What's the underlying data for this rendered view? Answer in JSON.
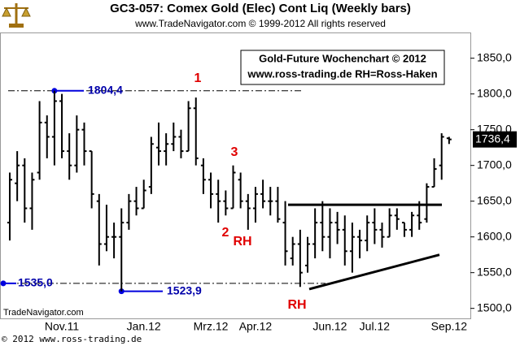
{
  "chart_data": {
    "type": "ohlc",
    "title": "GC3-057:  Comex Gold (Elec) Cont Liq  (Weekly bars)",
    "subtitle": "www.TradeNavigator.com © 1999-2012 All rights reserved",
    "info_box": [
      "Gold-Future Wochenchart © 2012",
      "www.ross-trading.de  RH=Ross-Haken"
    ],
    "watermark": "TradeNavigator.com",
    "footer": "© 2012  www.ross-trading.de",
    "categories": [
      null,
      null,
      null,
      null,
      null,
      null,
      null,
      "Nov.11",
      null,
      null,
      null,
      null,
      null,
      null,
      null,
      null,
      null,
      null,
      "Jan.12",
      null,
      null,
      null,
      null,
      null,
      null,
      null,
      null,
      "Mrz.12",
      null,
      null,
      null,
      null,
      null,
      "Apr.12",
      null,
      null,
      null,
      null,
      null,
      null,
      null,
      null,
      null,
      "Jun.12",
      null,
      null,
      null,
      null,
      null,
      "Jul.12",
      null,
      null,
      null,
      null,
      null,
      null,
      null,
      null,
      null,
      "Sep.12"
    ],
    "color": "#000000",
    "series": {
      "open": [
        1620,
        1675,
        1700,
        1640,
        1690,
        1760,
        1740,
        1790,
        1720,
        1700,
        1750,
        1720,
        1650,
        1590,
        1600,
        1600,
        1620,
        1650,
        1640,
        1670,
        1725,
        1720,
        1730,
        1740,
        1720,
        1780,
        1700,
        1680,
        1660,
        1650,
        1640,
        1680,
        1650,
        1640,
        1660,
        1650,
        1650,
        1620,
        1570,
        1590,
        1560,
        1590,
        1620,
        1600,
        1620,
        1610,
        1580,
        1600,
        1595,
        1620,
        1610,
        1600,
        1630,
        1620,
        1610,
        1630,
        1625,
        1670,
        1700,
        1738
      ],
      "high": [
        1690,
        1720,
        1710,
        1690,
        1790,
        1770,
        1804.4,
        1800,
        1745,
        1770,
        1760,
        1720,
        1660,
        1645,
        1620,
        1640,
        1660,
        1670,
        1680,
        1740,
        1760,
        1745,
        1760,
        1750,
        1790,
        1795,
        1710,
        1690,
        1680,
        1665,
        1700,
        1690,
        1660,
        1670,
        1680,
        1670,
        1670,
        1650,
        1600,
        1610,
        1600,
        1640,
        1650,
        1640,
        1635,
        1630,
        1620,
        1610,
        1630,
        1640,
        1620,
        1640,
        1640,
        1620,
        1635,
        1650,
        1675,
        1710,
        1745,
        1740
      ],
      "low": [
        1595,
        1650,
        1620,
        1610,
        1680,
        1710,
        1700,
        1710,
        1680,
        1690,
        1700,
        1640,
        1560,
        1580,
        1570,
        1523.9,
        1610,
        1630,
        1640,
        1660,
        1700,
        1700,
        1720,
        1710,
        1720,
        1700,
        1660,
        1640,
        1620,
        1630,
        1640,
        1640,
        1610,
        1620,
        1640,
        1630,
        1620,
        1560,
        1560,
        1530,
        1550,
        1570,
        1580,
        1570,
        1590,
        1560,
        1550,
        1570,
        1580,
        1590,
        1585,
        1600,
        1610,
        1600,
        1600,
        1610,
        1620,
        1670,
        1680,
        1730
      ],
      "close": [
        1680,
        1700,
        1640,
        1680,
        1760,
        1740,
        1790,
        1720,
        1700,
        1750,
        1720,
        1660,
        1590,
        1600,
        1600,
        1620,
        1650,
        1640,
        1665,
        1730,
        1720,
        1730,
        1740,
        1720,
        1780,
        1710,
        1680,
        1660,
        1650,
        1640,
        1690,
        1650,
        1640,
        1660,
        1650,
        1650,
        1625,
        1580,
        1590,
        1550,
        1590,
        1620,
        1600,
        1620,
        1610,
        1580,
        1600,
        1595,
        1620,
        1610,
        1600,
        1630,
        1625,
        1610,
        1630,
        1620,
        1670,
        1695,
        1740,
        1736.4
      ]
    },
    "ylim": [
      1486,
      1886
    ],
    "yticks": [
      {
        "value": 1500,
        "label": "1500,0"
      },
      {
        "value": 1550,
        "label": "1550,0"
      },
      {
        "value": 1600,
        "label": "1600,0"
      },
      {
        "value": 1650,
        "label": "1650,0"
      },
      {
        "value": 1700,
        "label": "1700,0"
      },
      {
        "value": 1750,
        "label": "1750,0"
      },
      {
        "value": 1800,
        "label": "1800,0"
      },
      {
        "value": 1850,
        "label": "1850,0"
      }
    ],
    "markers": [
      {
        "value": 1804.4,
        "label": "1804,4"
      },
      {
        "value": 1535,
        "label": "1535,0"
      },
      {
        "value": 1523.9,
        "label": "1523,9"
      }
    ],
    "last_price": {
      "value": 1736.4,
      "label": "1736,4"
    },
    "trendlines": [
      {
        "values": [
          1645,
          1645
        ]
      },
      {
        "values": [
          1527,
          1575
        ]
      }
    ],
    "annotations": [
      "1",
      "3",
      "2",
      "RH",
      "RH"
    ]
  }
}
